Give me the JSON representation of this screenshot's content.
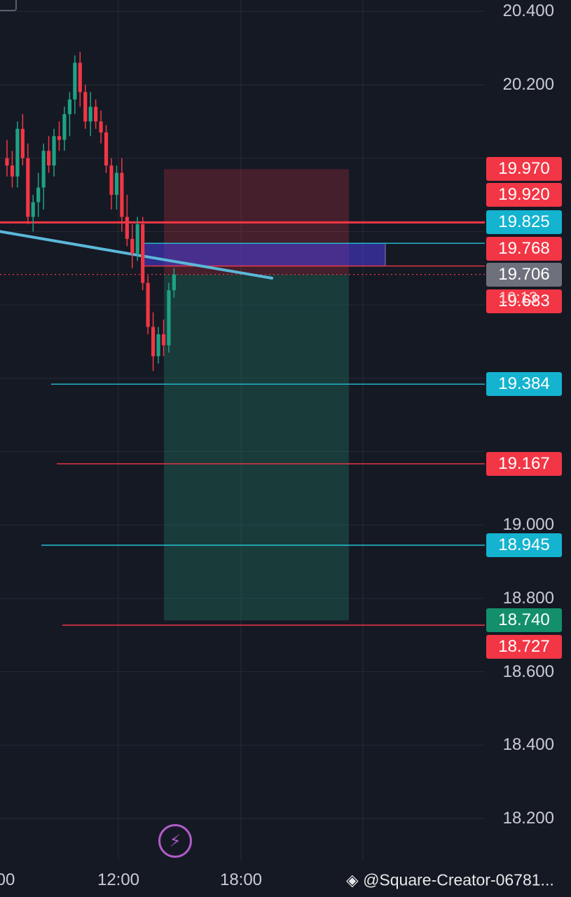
{
  "chart_data": {
    "type": "candlestick",
    "y_axis": {
      "range": [
        18.1,
        20.43
      ],
      "ticks": [
        "20.400",
        "20.200",
        "19.000",
        "18.800",
        "18.600",
        "18.400",
        "18.200"
      ]
    },
    "x_axis": {
      "ticks": [
        "00",
        "12:00",
        "18:00"
      ]
    },
    "candles": [
      [
        20.0,
        20.05,
        19.95,
        19.98
      ],
      [
        19.98,
        20.02,
        19.92,
        19.95
      ],
      [
        19.95,
        20.1,
        19.92,
        20.08
      ],
      [
        20.08,
        20.12,
        19.98,
        20.0
      ],
      [
        20.0,
        20.04,
        19.82,
        19.84
      ],
      [
        19.84,
        19.9,
        19.8,
        19.88
      ],
      [
        19.88,
        19.96,
        19.84,
        19.92
      ],
      [
        19.92,
        20.04,
        19.86,
        20.02
      ],
      [
        20.02,
        20.06,
        19.96,
        19.98
      ],
      [
        19.98,
        20.08,
        19.95,
        20.06
      ],
      [
        20.06,
        20.1,
        20.02,
        20.05
      ],
      [
        20.05,
        20.14,
        20.02,
        20.12
      ],
      [
        20.12,
        20.18,
        20.06,
        20.16
      ],
      [
        20.16,
        20.28,
        20.12,
        20.26
      ],
      [
        20.26,
        20.29,
        20.14,
        20.18
      ],
      [
        20.18,
        20.2,
        20.08,
        20.1
      ],
      [
        20.1,
        20.18,
        20.06,
        20.14
      ],
      [
        20.14,
        20.16,
        20.08,
        20.1
      ],
      [
        20.1,
        20.13,
        20.04,
        20.07
      ],
      [
        20.07,
        20.09,
        19.96,
        19.98
      ],
      [
        19.98,
        20.0,
        19.86,
        19.9
      ],
      [
        19.9,
        19.98,
        19.86,
        19.96
      ],
      [
        19.96,
        20.0,
        19.8,
        19.84
      ],
      [
        19.84,
        19.9,
        19.76,
        19.78
      ],
      [
        19.78,
        19.82,
        19.7,
        19.74
      ],
      [
        19.74,
        19.84,
        19.72,
        19.82
      ],
      [
        19.82,
        19.84,
        19.64,
        19.66
      ],
      [
        19.66,
        19.68,
        19.52,
        19.54
      ],
      [
        19.54,
        19.58,
        19.42,
        19.46
      ],
      [
        19.46,
        19.54,
        19.44,
        19.52
      ],
      [
        19.52,
        19.56,
        19.46,
        19.49
      ],
      [
        19.49,
        19.66,
        19.47,
        19.64
      ],
      [
        19.64,
        19.7,
        19.62,
        19.683
      ]
    ],
    "horizontal_lines": [
      {
        "price": 19.825,
        "color": "#f23645"
      },
      {
        "price": 19.768,
        "color": "#22c1d6"
      },
      {
        "price": 19.706,
        "color": "#f23645"
      },
      {
        "price": 19.683,
        "color": "#f23645",
        "dotted": true
      },
      {
        "price": 19.384,
        "color": "#22c1d6"
      },
      {
        "price": 19.167,
        "color": "#f23645"
      },
      {
        "price": 18.945,
        "color": "#22c1d6"
      },
      {
        "price": 18.727,
        "color": "#f23645"
      }
    ],
    "trendline": {
      "color": "#5bb8d8"
    },
    "position": {
      "type": "short",
      "entry": 19.683,
      "stop": 19.97,
      "target": 18.74
    }
  },
  "price_tags": [
    {
      "label": "19.970",
      "price": 19.97,
      "color": "#f23645"
    },
    {
      "label": "19.920",
      "price": 19.9,
      "color": "#f23645"
    },
    {
      "label": "19.825",
      "price": 19.825,
      "color": "#14b3cf"
    },
    {
      "label": "19.768",
      "price": 19.753,
      "color": "#f23645"
    },
    {
      "label": "19.706",
      "price": 19.683,
      "color": "#6e717b"
    },
    {
      "label": "19.683",
      "price": 19.61,
      "color": "#f23645"
    },
    {
      "label": "19.384",
      "price": 19.384,
      "color": "#14b3cf"
    },
    {
      "label": "19.167",
      "price": 19.167,
      "color": "#f23645"
    },
    {
      "label": "18.945",
      "price": 18.945,
      "color": "#14b3cf"
    },
    {
      "label": "18.740",
      "price": 18.74,
      "color": "#138f6c"
    },
    {
      "label": "18.727",
      "price": 18.668,
      "color": "#f23645"
    }
  ],
  "countdown": "10:13",
  "watermark": "@Square-Creator-06781...",
  "flash_icon": "lightning-icon"
}
